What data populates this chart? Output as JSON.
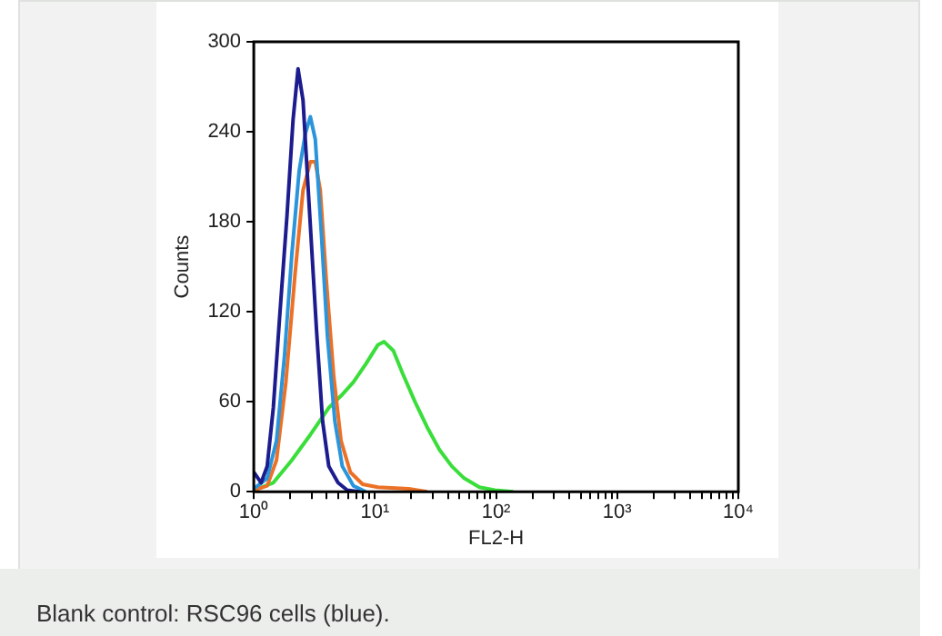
{
  "chart_data": {
    "type": "line",
    "xlabel": "FL2-H",
    "ylabel": "Counts",
    "log": "x",
    "grid": false,
    "legend": false,
    "marker": "none",
    "line_style": "solid",
    "xlim": [
      1,
      10000
    ],
    "ylim": [
      0,
      300
    ],
    "xticks": [
      {
        "value": 1,
        "label": "10⁰"
      },
      {
        "value": 2,
        "label": null
      },
      {
        "value": 3,
        "label": null
      },
      {
        "value": 4,
        "label": null
      },
      {
        "value": 5,
        "label": null
      },
      {
        "value": 6,
        "label": null
      },
      {
        "value": 7,
        "label": null
      },
      {
        "value": 8,
        "label": null
      },
      {
        "value": 9,
        "label": null
      },
      {
        "value": 10,
        "label": "10¹"
      },
      {
        "value": 20,
        "label": null
      },
      {
        "value": 30,
        "label": null
      },
      {
        "value": 40,
        "label": null
      },
      {
        "value": 50,
        "label": null
      },
      {
        "value": 60,
        "label": null
      },
      {
        "value": 70,
        "label": null
      },
      {
        "value": 80,
        "label": null
      },
      {
        "value": 90,
        "label": null
      },
      {
        "value": 100,
        "label": "10²"
      },
      {
        "value": 200,
        "label": null
      },
      {
        "value": 300,
        "label": null
      },
      {
        "value": 400,
        "label": null
      },
      {
        "value": 500,
        "label": null
      },
      {
        "value": 600,
        "label": null
      },
      {
        "value": 700,
        "label": null
      },
      {
        "value": 800,
        "label": null
      },
      {
        "value": 900,
        "label": null
      },
      {
        "value": 1000,
        "label": "10³"
      },
      {
        "value": 2000,
        "label": null
      },
      {
        "value": 3000,
        "label": null
      },
      {
        "value": 4000,
        "label": null
      },
      {
        "value": 5000,
        "label": null
      },
      {
        "value": 6000,
        "label": null
      },
      {
        "value": 7000,
        "label": null
      },
      {
        "value": 8000,
        "label": null
      },
      {
        "value": 9000,
        "label": null
      },
      {
        "value": 10000,
        "label": "10⁴"
      }
    ],
    "yticks": [
      0,
      60,
      120,
      180,
      240,
      300
    ],
    "series": [
      {
        "color": "#1c1c8e",
        "x": [
          1.0,
          1.15,
          1.29,
          1.45,
          1.63,
          1.88,
          2.11,
          2.32,
          2.55,
          2.86,
          3.3,
          3.7,
          4.16,
          4.96,
          5.91,
          7.46
        ],
        "values": [
          13,
          6,
          17,
          56,
          115,
          184,
          248,
          282,
          261,
          192,
          107,
          47,
          17,
          6,
          1,
          0
        ]
      },
      {
        "color": "#2b95dc",
        "x": [
          1.0,
          1.29,
          1.54,
          1.79,
          2.06,
          2.37,
          2.67,
          2.93,
          3.22,
          3.62,
          4.06,
          4.67,
          5.38,
          6.63,
          8.4
        ],
        "values": [
          2,
          9,
          34,
          90,
          158,
          214,
          239,
          250,
          235,
          171,
          103,
          47,
          17,
          4,
          0
        ]
      },
      {
        "color": "#ec7126",
        "x": [
          1.0,
          1.29,
          1.54,
          1.84,
          2.19,
          2.55,
          2.93,
          3.22,
          3.54,
          3.97,
          4.57,
          5.25,
          6.27,
          7.92,
          10.6,
          19.0,
          27.0
        ],
        "values": [
          1,
          4,
          21,
          73,
          145,
          201,
          220,
          220,
          201,
          141,
          77,
          34,
          13,
          5,
          3,
          2,
          0
        ]
      },
      {
        "color": "#3ade3a",
        "x": [
          1.0,
          1.45,
          2.06,
          2.93,
          4.16,
          5.26,
          6.64,
          8.39,
          10.6,
          11.9,
          14.2,
          16.9,
          21.4,
          27.0,
          34.1,
          43.1,
          54.5,
          72.9,
          97.7,
          139
        ],
        "values": [
          1,
          6,
          21,
          38,
          56,
          64,
          73,
          85,
          98,
          100,
          94,
          79,
          60,
          43,
          28,
          17,
          9,
          3,
          1,
          0
        ]
      }
    ],
    "annotations": [
      "Blank control: RSC96 cells (blue)."
    ]
  }
}
